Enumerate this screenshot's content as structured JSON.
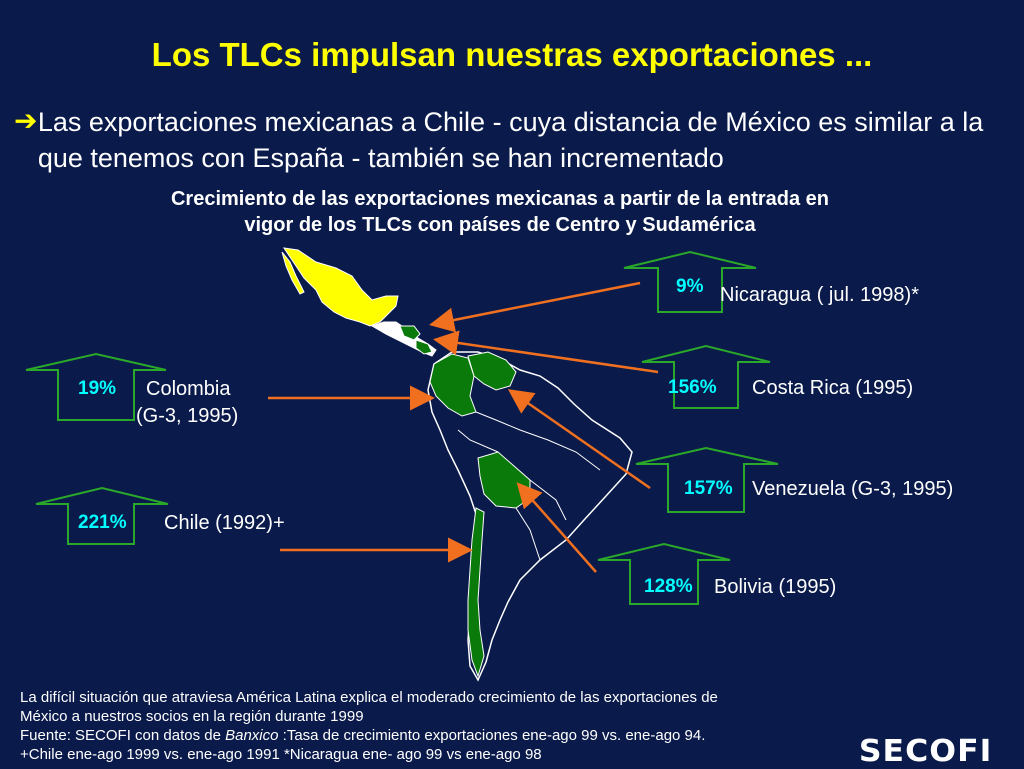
{
  "title": "Los TLCs impulsan nuestras exportaciones ...",
  "bullet": "Las exportaciones mexicanas a Chile - cuya distancia de México es similar a la que tenemos con España - también se han incrementado",
  "subtitle_line1": "Crecimiento de las exportaciones mexicanas a partir de la entrada en",
  "subtitle_line2": "vigor de los TLCs con países de Centro y Sudamérica",
  "callouts": {
    "nicaragua": {
      "pct": "9%",
      "label": "Nicaragua ( jul. 1998)*"
    },
    "colombia": {
      "pct": "19%",
      "label1": "Colombia",
      "label2": "(G-3, 1995)"
    },
    "costa_rica": {
      "pct": "156%",
      "label": "Costa Rica (1995)"
    },
    "venezuela": {
      "pct": "157%",
      "label": "Venezuela  (G-3, 1995)"
    },
    "chile": {
      "pct": "221%",
      "label": "Chile (1992)+"
    },
    "bolivia": {
      "pct": "128%",
      "label": "Bolivia (1995)"
    }
  },
  "footnote": {
    "line1": "La difícil situación que atraviesa América Latina explica el moderado crecimiento de las exportaciones de",
    "line2": "México a nuestros socios en la región durante 1999",
    "line3_prefix": "Fuente: SECOFI con datos de ",
    "line3_italic": "Banxico",
    "line3_suffix": " :Tasa de crecimiento exportaciones ene-ago 99 vs. ene-ago 94.",
    "line4": "+Chile ene-ago 1999 vs. ene-ago 1991 *Nicaragua ene- ago 99 vs ene-ago 98"
  },
  "logo": "SECOFI",
  "colors": {
    "background": "#0a1a4a",
    "title": "#ffff00",
    "percent": "#00ffff",
    "mexico": "#ffff00",
    "partners": "#0a7a0a",
    "arrows": "#f07020",
    "badge_outline": "#2aa82a"
  }
}
